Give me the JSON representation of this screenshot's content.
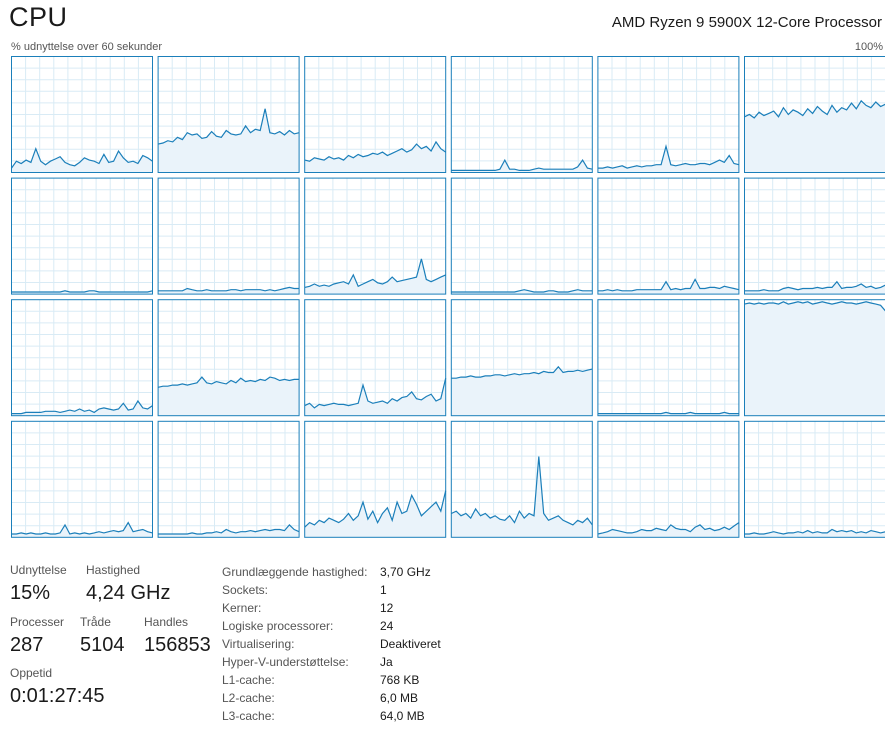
{
  "header": {
    "title": "CPU",
    "cpu_name": "AMD Ryzen 9 5900X 12-Core Processor",
    "axis_label": "% udnyttelse over 60 sekunder",
    "axis_max": "100%"
  },
  "colors": {
    "line": "#1b7fba",
    "fill": "#eaf3fa",
    "grid": "#d9ebf5",
    "border": "#1b7fba"
  },
  "cores": [
    {
      "id": 0,
      "values": [
        3,
        9,
        7,
        10,
        8,
        20,
        9,
        6,
        9,
        11,
        13,
        8,
        6,
        5,
        8,
        12,
        10,
        9,
        7,
        15,
        8,
        9,
        18,
        12,
        8,
        9,
        7,
        14,
        12,
        9
      ]
    },
    {
      "id": 1,
      "values": [
        24,
        25,
        27,
        26,
        30,
        28,
        34,
        32,
        33,
        29,
        30,
        35,
        31,
        30,
        36,
        33,
        32,
        33,
        40,
        34,
        37,
        36,
        55,
        34,
        33,
        35,
        32,
        36,
        33,
        34
      ]
    },
    {
      "id": 2,
      "values": [
        10,
        9,
        12,
        11,
        10,
        13,
        11,
        12,
        10,
        14,
        12,
        15,
        13,
        14,
        16,
        15,
        17,
        14,
        16,
        18,
        20,
        17,
        19,
        24,
        20,
        22,
        18,
        26,
        20,
        17
      ]
    },
    {
      "id": 3,
      "values": [
        1,
        1,
        1,
        1,
        1,
        1,
        1,
        1,
        1,
        1,
        2,
        10,
        2,
        2,
        1,
        1,
        1,
        2,
        3,
        2,
        2,
        2,
        2,
        2,
        2,
        2,
        4,
        10,
        3,
        2
      ]
    },
    {
      "id": 4,
      "values": [
        3,
        3,
        4,
        3,
        4,
        5,
        3,
        4,
        5,
        4,
        5,
        5,
        6,
        6,
        22,
        6,
        5,
        6,
        7,
        6,
        6,
        7,
        7,
        6,
        8,
        10,
        8,
        14,
        7,
        6
      ]
    },
    {
      "id": 5,
      "values": [
        48,
        50,
        47,
        52,
        49,
        51,
        53,
        48,
        56,
        50,
        54,
        52,
        49,
        55,
        51,
        57,
        53,
        50,
        58,
        52,
        56,
        54,
        60,
        55,
        62,
        58,
        56,
        61,
        57,
        59
      ]
    },
    {
      "id": 6,
      "values": [
        1,
        1,
        1,
        1,
        1,
        1,
        1,
        1,
        1,
        1,
        1,
        2,
        1,
        1,
        1,
        1,
        2,
        2,
        1,
        1,
        1,
        1,
        1,
        1,
        1,
        1,
        1,
        1,
        1,
        2
      ]
    },
    {
      "id": 7,
      "values": [
        2,
        2,
        2,
        2,
        2,
        2,
        4,
        3,
        2,
        2,
        3,
        2,
        2,
        2,
        2,
        3,
        3,
        2,
        3,
        3,
        3,
        3,
        2,
        3,
        2,
        3,
        4,
        5,
        4,
        4
      ]
    },
    {
      "id": 8,
      "values": [
        5,
        6,
        8,
        6,
        7,
        6,
        8,
        9,
        10,
        8,
        16,
        6,
        8,
        10,
        12,
        9,
        8,
        10,
        14,
        10,
        11,
        12,
        13,
        14,
        30,
        12,
        10,
        12,
        14,
        16
      ]
    },
    {
      "id": 9,
      "values": [
        1,
        1,
        1,
        1,
        1,
        1,
        1,
        1,
        1,
        1,
        1,
        1,
        1,
        1,
        2,
        3,
        2,
        1,
        1,
        1,
        2,
        2,
        1,
        1,
        1,
        2,
        3,
        2,
        2,
        2
      ]
    },
    {
      "id": 10,
      "values": [
        2,
        2,
        3,
        2,
        3,
        2,
        2,
        2,
        3,
        3,
        3,
        3,
        3,
        3,
        10,
        3,
        4,
        3,
        4,
        4,
        12,
        4,
        4,
        5,
        5,
        4,
        6,
        5,
        4,
        3
      ]
    },
    {
      "id": 11,
      "values": [
        2,
        2,
        2,
        2,
        3,
        2,
        2,
        2,
        4,
        5,
        4,
        3,
        4,
        4,
        4,
        5,
        4,
        5,
        5,
        10,
        4,
        5,
        5,
        6,
        8,
        5,
        6,
        4,
        5,
        7
      ]
    },
    {
      "id": 12,
      "values": [
        1,
        1,
        1,
        2,
        2,
        2,
        2,
        3,
        3,
        3,
        2,
        3,
        4,
        3,
        5,
        3,
        4,
        2,
        5,
        6,
        5,
        4,
        5,
        10,
        4,
        5,
        12,
        6,
        5,
        8
      ]
    },
    {
      "id": 13,
      "values": [
        24,
        25,
        25,
        26,
        26,
        27,
        26,
        27,
        28,
        33,
        28,
        27,
        29,
        28,
        27,
        30,
        28,
        32,
        29,
        30,
        29,
        31,
        30,
        33,
        32,
        30,
        31,
        30,
        31,
        31
      ]
    },
    {
      "id": 14,
      "values": [
        8,
        10,
        6,
        9,
        8,
        9,
        10,
        9,
        9,
        8,
        9,
        10,
        26,
        12,
        10,
        11,
        12,
        10,
        14,
        12,
        15,
        16,
        20,
        14,
        13,
        16,
        18,
        12,
        14,
        32
      ]
    },
    {
      "id": 15,
      "values": [
        32,
        32,
        33,
        33,
        34,
        33,
        33,
        34,
        34,
        35,
        35,
        34,
        35,
        36,
        35,
        36,
        36,
        37,
        36,
        38,
        37,
        37,
        42,
        37,
        38,
        38,
        39,
        38,
        39,
        40
      ]
    },
    {
      "id": 16,
      "values": [
        1,
        1,
        1,
        1,
        1,
        1,
        1,
        1,
        1,
        1,
        1,
        1,
        1,
        1,
        2,
        1,
        1,
        1,
        1,
        2,
        1,
        1,
        1,
        1,
        1,
        1,
        2,
        1,
        1,
        1
      ]
    },
    {
      "id": 17,
      "values": [
        97,
        98,
        97,
        98,
        97,
        98,
        98,
        97,
        99,
        97,
        98,
        99,
        98,
        99,
        97,
        98,
        99,
        98,
        97,
        98,
        99,
        98,
        98,
        97,
        98,
        99,
        98,
        97,
        96,
        91
      ]
    },
    {
      "id": 18,
      "values": [
        2,
        2,
        3,
        2,
        3,
        2,
        2,
        3,
        2,
        2,
        3,
        10,
        2,
        3,
        2,
        3,
        2,
        3,
        4,
        3,
        4,
        5,
        4,
        5,
        12,
        4,
        5,
        6,
        4,
        3
      ]
    },
    {
      "id": 19,
      "values": [
        2,
        2,
        2,
        2,
        2,
        2,
        2,
        3,
        2,
        2,
        3,
        3,
        4,
        3,
        6,
        4,
        3,
        4,
        4,
        5,
        4,
        5,
        6,
        5,
        6,
        6,
        5,
        10,
        6,
        4
      ]
    },
    {
      "id": 20,
      "values": [
        8,
        12,
        10,
        14,
        12,
        16,
        14,
        12,
        15,
        20,
        14,
        18,
        30,
        15,
        22,
        12,
        20,
        25,
        14,
        30,
        20,
        22,
        36,
        28,
        18,
        22,
        26,
        30,
        22,
        40
      ]
    },
    {
      "id": 21,
      "values": [
        20,
        22,
        18,
        20,
        16,
        24,
        18,
        20,
        16,
        18,
        15,
        14,
        18,
        12,
        22,
        16,
        20,
        18,
        70,
        20,
        14,
        16,
        18,
        14,
        12,
        10,
        14,
        12,
        16,
        10
      ]
    },
    {
      "id": 22,
      "values": [
        2,
        3,
        4,
        6,
        5,
        4,
        3,
        3,
        4,
        6,
        5,
        5,
        7,
        6,
        5,
        10,
        7,
        6,
        6,
        4,
        8,
        10,
        6,
        7,
        5,
        6,
        8,
        6,
        9,
        12
      ]
    },
    {
      "id": 23,
      "values": [
        2,
        2,
        3,
        2,
        2,
        3,
        4,
        3,
        2,
        3,
        3,
        4,
        3,
        5,
        3,
        4,
        3,
        3,
        6,
        4,
        5,
        4,
        5,
        3,
        4,
        3,
        5,
        4,
        3,
        4
      ]
    }
  ],
  "stats": {
    "udnyttelse": {
      "label": "Udnyttelse",
      "value": "15%"
    },
    "hastighed": {
      "label": "Hastighed",
      "value": "4,24 GHz"
    },
    "processer": {
      "label": "Processer",
      "value": "287"
    },
    "traade": {
      "label": "Tråde",
      "value": "5104"
    },
    "handles": {
      "label": "Handles",
      "value": "156853"
    },
    "oppetid": {
      "label": "Oppetid",
      "value": "0:01:27:45"
    }
  },
  "details": [
    {
      "key": "Grundlæggende hastighed:",
      "value": "3,70 GHz"
    },
    {
      "key": "Sockets:",
      "value": "1"
    },
    {
      "key": "Kerner:",
      "value": "12"
    },
    {
      "key": "Logiske processorer:",
      "value": "24"
    },
    {
      "key": "Virtualisering:",
      "value": "Deaktiveret"
    },
    {
      "key": "Hyper-V-understøttelse:",
      "value": "Ja"
    },
    {
      "key": "L1-cache:",
      "value": "768 KB"
    },
    {
      "key": "L2-cache:",
      "value": "6,0 MB"
    },
    {
      "key": "L3-cache:",
      "value": "64,0 MB"
    }
  ]
}
